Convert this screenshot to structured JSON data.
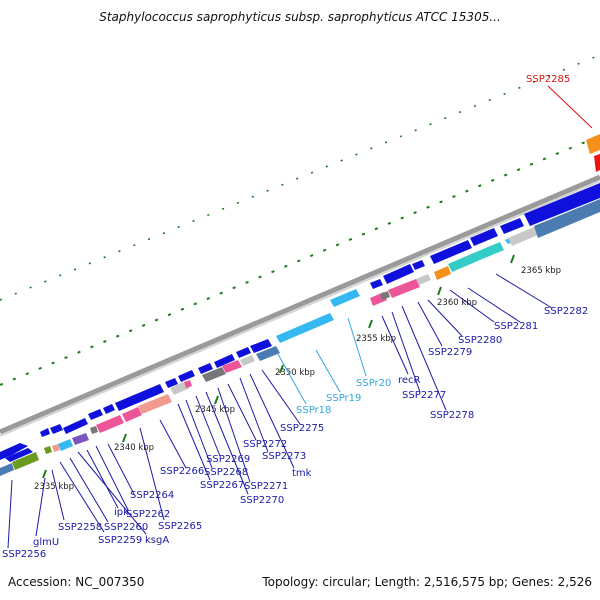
{
  "title": "Staphylococcus saprophyticus subsp. saprophyticus ATCC 15305...",
  "footer": {
    "accession": "Accession: NC_007350",
    "summary": "Topology: circular; Length: 2,516,575 bp; Genes: 2,526"
  },
  "ticks": [
    "2335 kbp",
    "2340 kbp",
    "2345 kbp",
    "2350 kbp",
    "2355 kbp",
    "2360 kbp",
    "2365 kbp"
  ],
  "genes": [
    {
      "label": "SSP2256",
      "color": "#1a1aa6"
    },
    {
      "label": "glmU",
      "color": "#1a1aa6"
    },
    {
      "label": "SSP2258",
      "color": "#1a1aa6"
    },
    {
      "label": "SSP2259",
      "color": "#1a1aa6"
    },
    {
      "label": "SSP2260",
      "color": "#1a1aa6"
    },
    {
      "label": "ksgA",
      "color": "#1a1aa6"
    },
    {
      "label": "ipk",
      "color": "#1a1aa6"
    },
    {
      "label": "SSP2262",
      "color": "#1a1aa6"
    },
    {
      "label": "SSP2264",
      "color": "#1a1aa6"
    },
    {
      "label": "SSP2265",
      "color": "#1a1aa6"
    },
    {
      "label": "SSP2266",
      "color": "#1a1aa6"
    },
    {
      "label": "SSP2267",
      "color": "#1a1aa6"
    },
    {
      "label": "SSP2268",
      "color": "#1a1aa6"
    },
    {
      "label": "SSP2269",
      "color": "#1a1aa6"
    },
    {
      "label": "SSP2270",
      "color": "#1a1aa6"
    },
    {
      "label": "SSP2271",
      "color": "#1a1aa6"
    },
    {
      "label": "SSP2272",
      "color": "#1a1aa6"
    },
    {
      "label": "SSP2273",
      "color": "#1a1aa6"
    },
    {
      "label": "tmk",
      "color": "#1a1aa6"
    },
    {
      "label": "SSP2275",
      "color": "#1a1aa6"
    },
    {
      "label": "SSPr18",
      "color": "#33a6dd"
    },
    {
      "label": "SSPr19",
      "color": "#33a6dd"
    },
    {
      "label": "SSPr20",
      "color": "#33a6dd"
    },
    {
      "label": "recR",
      "color": "#1a1aa6"
    },
    {
      "label": "SSP2277",
      "color": "#1a1aa6"
    },
    {
      "label": "SSP2278",
      "color": "#1a1aa6"
    },
    {
      "label": "SSP2279",
      "color": "#1a1aa6"
    },
    {
      "label": "SSP2280",
      "color": "#1a1aa6"
    },
    {
      "label": "SSP2281",
      "color": "#1a1aa6"
    },
    {
      "label": "SSP2282",
      "color": "#1a1aa6"
    },
    {
      "label": "SSP2285",
      "color": "#dd1111"
    }
  ],
  "colors": {
    "backbone": "#8c8c8c",
    "cds": "#1010dd",
    "rrna": "#33b8f0",
    "pink": "#ee5599",
    "salmon": "#f09a90",
    "teal": "#33ccc6",
    "orange": "#f5901c",
    "steel": "#4a7cb2",
    "olive": "#6a9a1e",
    "tick_green": "#1e7a1e"
  }
}
